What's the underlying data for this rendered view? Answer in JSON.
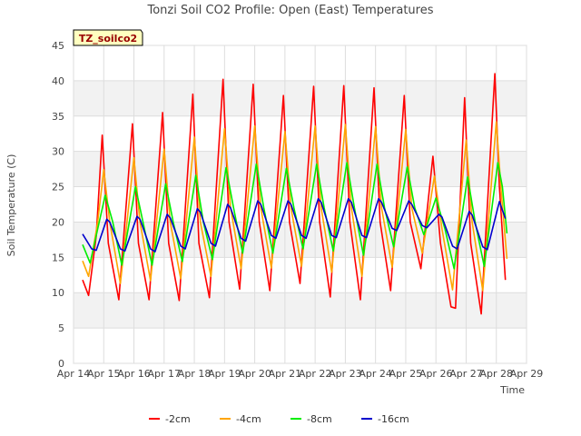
{
  "chart_data": {
    "type": "line",
    "title": "Tonzi Soil CO2 Profile: Open (East) Temperatures",
    "xlabel": "Time",
    "ylabel": "Soil Temperature (C)",
    "badge": "TZ_soilco2",
    "xlim": [
      14,
      29
    ],
    "ylim": [
      0,
      45
    ],
    "x_ticks": [
      {
        "x": 14,
        "label": "Apr 14"
      },
      {
        "x": 15,
        "label": "Apr 15"
      },
      {
        "x": 16,
        "label": "Apr 16"
      },
      {
        "x": 17,
        "label": "Apr 17"
      },
      {
        "x": 18,
        "label": "Apr 18"
      },
      {
        "x": 19,
        "label": "Apr 19"
      },
      {
        "x": 20,
        "label": "Apr 20"
      },
      {
        "x": 21,
        "label": "Apr 21"
      },
      {
        "x": 22,
        "label": "Apr 22"
      },
      {
        "x": 23,
        "label": "Apr 23"
      },
      {
        "x": 24,
        "label": "Apr 24"
      },
      {
        "x": 25,
        "label": "Apr 25"
      },
      {
        "x": 26,
        "label": "Apr 26"
      },
      {
        "x": 27,
        "label": "Apr 27"
      },
      {
        "x": 28,
        "label": "Apr 28"
      },
      {
        "x": 29,
        "label": "Apr 29"
      }
    ],
    "y_ticks": [
      0,
      5,
      10,
      15,
      20,
      25,
      30,
      35,
      40,
      45
    ],
    "grid": true,
    "legend_position": "bottom",
    "series": [
      {
        "name": "-2cm",
        "color": "#ff0000",
        "points": [
          [
            14.3,
            11.8
          ],
          [
            14.5,
            9.6
          ],
          [
            14.75,
            18
          ],
          [
            14.95,
            32.3
          ],
          [
            15.15,
            17
          ],
          [
            15.5,
            9
          ],
          [
            15.95,
            33.9
          ],
          [
            16.15,
            17
          ],
          [
            16.5,
            9
          ],
          [
            16.95,
            35.5
          ],
          [
            17.15,
            17
          ],
          [
            17.5,
            8.9
          ],
          [
            17.95,
            38.1
          ],
          [
            18.15,
            17
          ],
          [
            18.5,
            9.3
          ],
          [
            18.95,
            40.2
          ],
          [
            19.15,
            20
          ],
          [
            19.5,
            10.5
          ],
          [
            19.95,
            39.5
          ],
          [
            20.15,
            20
          ],
          [
            20.5,
            10.3
          ],
          [
            20.95,
            37.9
          ],
          [
            21.15,
            20
          ],
          [
            21.5,
            11.3
          ],
          [
            21.95,
            39.2
          ],
          [
            22.15,
            20
          ],
          [
            22.5,
            9.4
          ],
          [
            22.95,
            39.3
          ],
          [
            23.15,
            20
          ],
          [
            23.5,
            9.0
          ],
          [
            23.95,
            39.0
          ],
          [
            24.15,
            20
          ],
          [
            24.5,
            10.3
          ],
          [
            24.95,
            37.9
          ],
          [
            25.15,
            20
          ],
          [
            25.5,
            13.4
          ],
          [
            25.9,
            29.3
          ],
          [
            26.15,
            17
          ],
          [
            26.5,
            8.0
          ],
          [
            26.65,
            7.8
          ],
          [
            26.95,
            37.6
          ],
          [
            27.15,
            17
          ],
          [
            27.5,
            7.0
          ],
          [
            27.95,
            41.0
          ],
          [
            28.1,
            25
          ],
          [
            28.3,
            11.8
          ]
        ]
      },
      {
        "name": "-4cm",
        "color": "#ffa500",
        "points": [
          [
            14.3,
            14.5
          ],
          [
            14.5,
            12.3
          ],
          [
            14.8,
            20
          ],
          [
            15.0,
            27.4
          ],
          [
            15.2,
            20
          ],
          [
            15.55,
            11.3
          ],
          [
            16.0,
            29.1
          ],
          [
            16.2,
            20
          ],
          [
            16.55,
            11.7
          ],
          [
            17.0,
            30.3
          ],
          [
            17.2,
            20
          ],
          [
            17.55,
            12.0
          ],
          [
            18.0,
            32.0
          ],
          [
            18.2,
            20
          ],
          [
            18.55,
            12.3
          ],
          [
            19.0,
            33.2
          ],
          [
            19.2,
            22
          ],
          [
            19.55,
            13.4
          ],
          [
            20.0,
            33.6
          ],
          [
            20.2,
            22
          ],
          [
            20.55,
            13.5
          ],
          [
            21.0,
            32.8
          ],
          [
            21.2,
            22
          ],
          [
            21.55,
            13.7
          ],
          [
            22.0,
            33.6
          ],
          [
            22.2,
            22
          ],
          [
            22.55,
            12.9
          ],
          [
            23.0,
            33.8
          ],
          [
            23.2,
            22
          ],
          [
            23.55,
            12.3
          ],
          [
            24.0,
            33.5
          ],
          [
            24.2,
            22
          ],
          [
            24.55,
            13.6
          ],
          [
            25.0,
            33.1
          ],
          [
            25.2,
            22
          ],
          [
            25.55,
            15.6
          ],
          [
            25.95,
            26.5
          ],
          [
            26.2,
            19
          ],
          [
            26.55,
            10.4
          ],
          [
            27.0,
            31.6
          ],
          [
            27.2,
            20
          ],
          [
            27.55,
            10.3
          ],
          [
            28.0,
            34.2
          ],
          [
            28.15,
            25
          ],
          [
            28.35,
            14.8
          ]
        ]
      },
      {
        "name": "-8cm",
        "color": "#00ee00",
        "points": [
          [
            14.3,
            16.8
          ],
          [
            14.55,
            14.2
          ],
          [
            14.85,
            20
          ],
          [
            15.05,
            23.8
          ],
          [
            15.3,
            20
          ],
          [
            15.6,
            13.9
          ],
          [
            16.05,
            25.0
          ],
          [
            16.3,
            20
          ],
          [
            16.6,
            13.9
          ],
          [
            17.05,
            25.4
          ],
          [
            17.3,
            20
          ],
          [
            17.6,
            14.4
          ],
          [
            18.05,
            26.6
          ],
          [
            18.3,
            20
          ],
          [
            18.6,
            14.7
          ],
          [
            19.05,
            27.7
          ],
          [
            19.3,
            22
          ],
          [
            19.6,
            15.6
          ],
          [
            20.05,
            28.2
          ],
          [
            20.3,
            22
          ],
          [
            20.6,
            15.6
          ],
          [
            21.05,
            27.6
          ],
          [
            21.3,
            22
          ],
          [
            21.6,
            16.2
          ],
          [
            22.05,
            28.2
          ],
          [
            22.3,
            22
          ],
          [
            22.6,
            15.9
          ],
          [
            23.05,
            28.4
          ],
          [
            23.3,
            22
          ],
          [
            23.6,
            15.3
          ],
          [
            24.05,
            28.2
          ],
          [
            24.3,
            22
          ],
          [
            24.6,
            16.5
          ],
          [
            25.05,
            27.8
          ],
          [
            25.3,
            22
          ],
          [
            25.6,
            18.2
          ],
          [
            26.0,
            23.4
          ],
          [
            26.3,
            19
          ],
          [
            26.6,
            13.4
          ],
          [
            27.05,
            26.4
          ],
          [
            27.3,
            20
          ],
          [
            27.6,
            13.7
          ],
          [
            28.05,
            28.4
          ],
          [
            28.2,
            25
          ],
          [
            28.35,
            18.4
          ]
        ]
      },
      {
        "name": "-16cm",
        "color": "#0000cc",
        "points": [
          [
            14.3,
            18.3
          ],
          [
            14.6,
            16.2
          ],
          [
            14.75,
            16.0
          ],
          [
            15.1,
            20.4
          ],
          [
            15.2,
            20.0
          ],
          [
            15.55,
            16.2
          ],
          [
            15.7,
            15.9
          ],
          [
            16.1,
            20.8
          ],
          [
            16.2,
            20.4
          ],
          [
            16.55,
            16.2
          ],
          [
            16.7,
            15.8
          ],
          [
            17.1,
            21.1
          ],
          [
            17.2,
            20.6
          ],
          [
            17.55,
            16.6
          ],
          [
            17.7,
            16.2
          ],
          [
            18.1,
            21.9
          ],
          [
            18.2,
            21.4
          ],
          [
            18.55,
            17.0
          ],
          [
            18.7,
            16.6
          ],
          [
            19.1,
            22.5
          ],
          [
            19.2,
            22.0
          ],
          [
            19.55,
            17.7
          ],
          [
            19.7,
            17.3
          ],
          [
            20.1,
            23.0
          ],
          [
            20.2,
            22.5
          ],
          [
            20.55,
            18.1
          ],
          [
            20.7,
            17.7
          ],
          [
            21.1,
            23.0
          ],
          [
            21.2,
            22.5
          ],
          [
            21.55,
            18.1
          ],
          [
            21.7,
            17.7
          ],
          [
            22.1,
            23.3
          ],
          [
            22.2,
            22.8
          ],
          [
            22.55,
            18.1
          ],
          [
            22.7,
            17.8
          ],
          [
            23.1,
            23.3
          ],
          [
            23.2,
            22.8
          ],
          [
            23.55,
            18.1
          ],
          [
            23.7,
            17.8
          ],
          [
            24.1,
            23.3
          ],
          [
            24.2,
            22.8
          ],
          [
            24.55,
            19.1
          ],
          [
            24.7,
            18.8
          ],
          [
            25.1,
            23.0
          ],
          [
            25.2,
            22.5
          ],
          [
            25.55,
            19.5
          ],
          [
            25.7,
            19.2
          ],
          [
            26.1,
            21.1
          ],
          [
            26.2,
            20.7
          ],
          [
            26.55,
            16.6
          ],
          [
            26.7,
            16.2
          ],
          [
            27.1,
            21.5
          ],
          [
            27.2,
            21.0
          ],
          [
            27.55,
            16.5
          ],
          [
            27.7,
            16.1
          ],
          [
            28.1,
            22.9
          ],
          [
            28.3,
            20.5
          ]
        ]
      }
    ]
  }
}
